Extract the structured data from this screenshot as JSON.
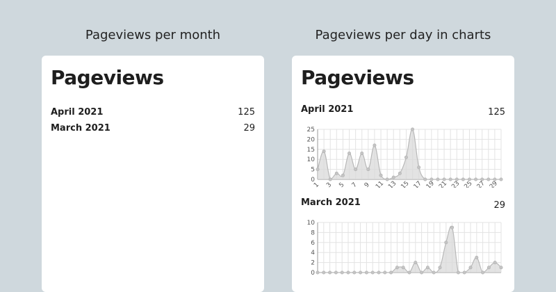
{
  "left_panel": {
    "caption": "Pageviews per month",
    "title": "Pageviews",
    "rows": [
      {
        "label": "April 2021",
        "count": "125"
      },
      {
        "label": "March 2021",
        "count": "29"
      }
    ]
  },
  "right_panel": {
    "caption": "Pageviews per day in charts",
    "title": "Pageviews"
  },
  "colors": {
    "area": "#d9d9d9",
    "line": "#b8b8b8",
    "grid": "#e3e3e3",
    "axis": "#999999"
  },
  "chart_data": [
    {
      "type": "area",
      "title": "April 2021",
      "total": "125",
      "x": [
        1,
        2,
        3,
        4,
        5,
        6,
        7,
        8,
        9,
        10,
        11,
        12,
        13,
        14,
        15,
        16,
        17,
        18,
        19,
        20,
        21,
        22,
        23,
        24,
        25,
        26,
        27,
        28,
        29,
        30
      ],
      "y": [
        5,
        14,
        0,
        3,
        2,
        13,
        5,
        13,
        5,
        17,
        2,
        0,
        1,
        3,
        11,
        25,
        6,
        0,
        0,
        0,
        0,
        0,
        0,
        0,
        0,
        0,
        0,
        0,
        0,
        0
      ],
      "x_tick_labels": [
        "1",
        "3",
        "5",
        "7",
        "9",
        "11",
        "13",
        "15",
        "17",
        "19",
        "21",
        "23",
        "25",
        "27",
        "29"
      ],
      "y_tick_labels": [
        "0",
        "5",
        "10",
        "15",
        "20",
        "25"
      ],
      "ylim": [
        0,
        25
      ],
      "grid": true
    },
    {
      "type": "area",
      "title": "March 2021",
      "total": "29",
      "x": [
        1,
        2,
        3,
        4,
        5,
        6,
        7,
        8,
        9,
        10,
        11,
        12,
        13,
        14,
        15,
        16,
        17,
        18,
        19,
        20,
        21,
        22,
        23,
        24,
        25,
        26,
        27,
        28,
        29,
        30,
        31
      ],
      "y": [
        0,
        0,
        0,
        0,
        0,
        0,
        0,
        0,
        0,
        0,
        0,
        0,
        0,
        1,
        1,
        0,
        2,
        0,
        1,
        0,
        1,
        6,
        9,
        0,
        0,
        1,
        3,
        0,
        1,
        2,
        1
      ],
      "y_tick_labels": [
        "0",
        "2",
        "4",
        "6",
        "8",
        "10"
      ],
      "ylim": [
        0,
        10
      ],
      "grid": true
    }
  ]
}
